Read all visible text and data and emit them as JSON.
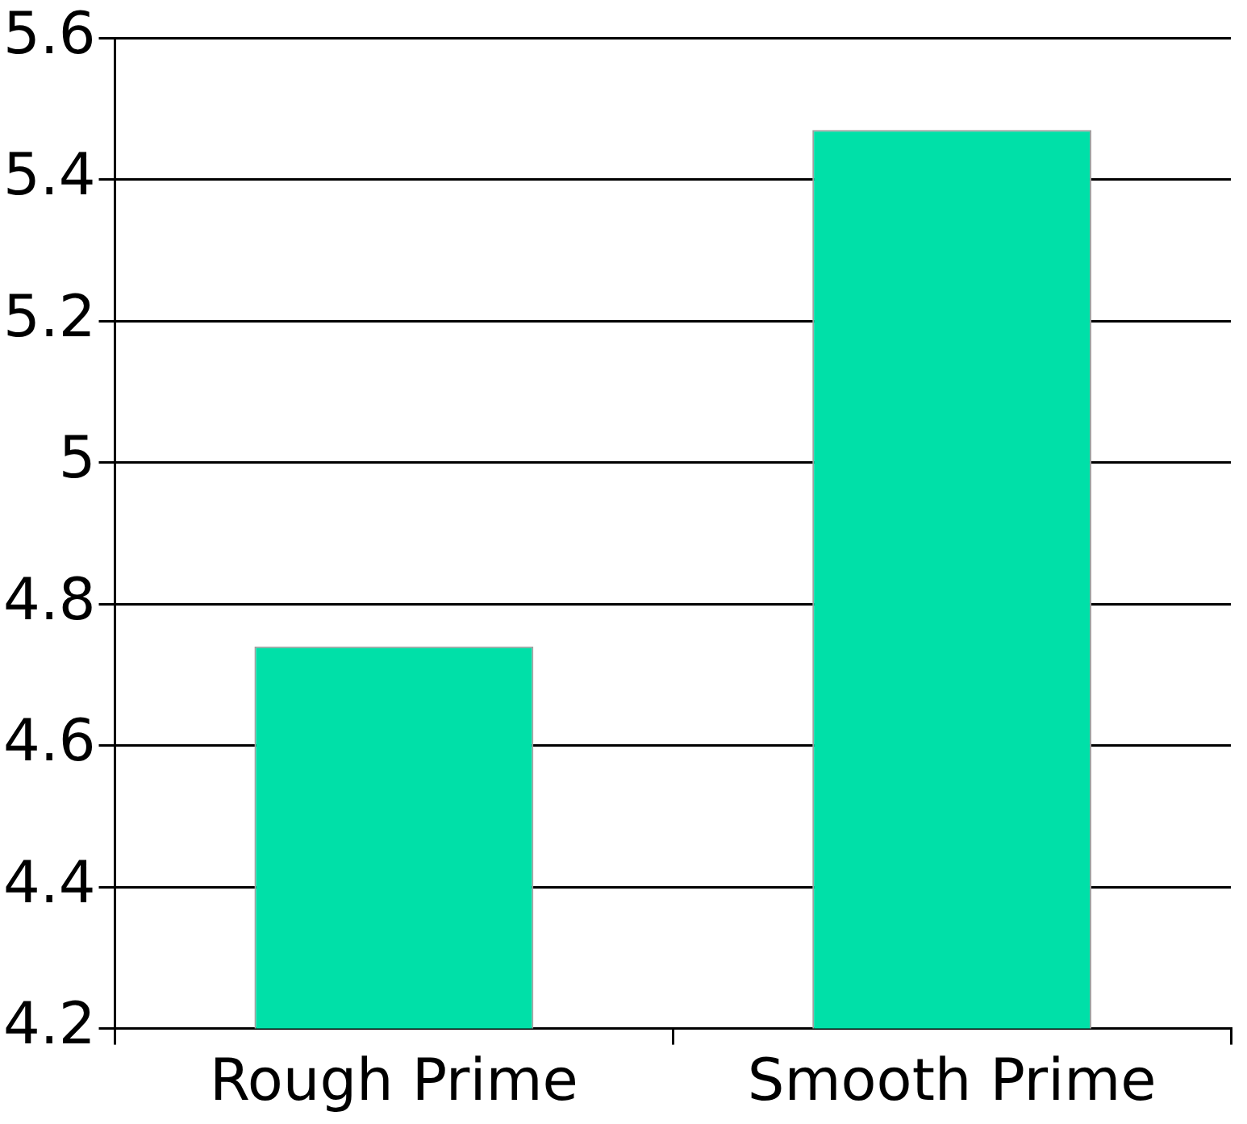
{
  "chart_data": {
    "type": "bar",
    "categories": [
      "Rough Prime",
      "Smooth Prime"
    ],
    "values": [
      4.74,
      5.47
    ],
    "color": "#00e0a8",
    "ylim": [
      4.2,
      5.6
    ],
    "yticks": [
      4.2,
      4.4,
      4.6,
      4.8,
      5,
      5.2,
      5.4,
      5.6
    ],
    "grid": "y",
    "legend": false
  }
}
